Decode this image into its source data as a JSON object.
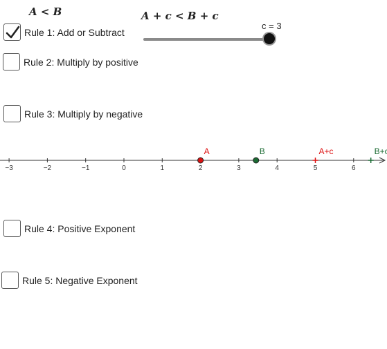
{
  "inequality_top": "A < B",
  "inequality_plus": "A + c < B + c",
  "slider": {
    "label": "c = 3",
    "value": 3
  },
  "rules": [
    {
      "label": "Rule 1: Add or Subtract",
      "checked": true
    },
    {
      "label": "Rule 2: Multiply by positive",
      "checked": false
    },
    {
      "label": "Rule 3: Multiply by negative",
      "checked": false
    },
    {
      "label": "Rule 4: Positive Exponent",
      "checked": false
    },
    {
      "label": "Rule 5: Negative Exponent",
      "checked": false
    }
  ],
  "number_line": {
    "ticks": [
      "−3",
      "−2",
      "−1",
      "0",
      "1",
      "2",
      "3",
      "4",
      "5",
      "6"
    ],
    "points": [
      {
        "label": "A",
        "value": 2,
        "color": "#dd1111",
        "style": "dot"
      },
      {
        "label": "B",
        "value": 3.45,
        "color": "#1a6a32",
        "style": "dot"
      },
      {
        "label": "A+c",
        "value": 5,
        "color": "#dd1111",
        "style": "cross"
      },
      {
        "label": "B+c",
        "value": 6.45,
        "color": "#1a6a32",
        "style": "cross"
      }
    ]
  },
  "colors": {
    "red": "#dd1111",
    "green": "#1a6a32",
    "axis": "#333333"
  }
}
